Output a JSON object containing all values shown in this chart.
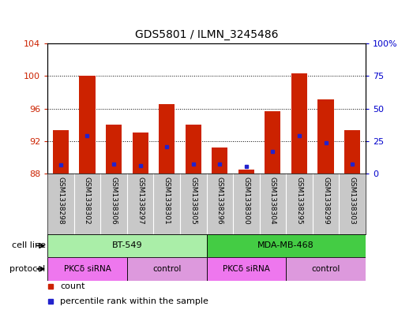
{
  "title": "GDS5801 / ILMN_3245486",
  "samples": [
    "GSM1338298",
    "GSM1338302",
    "GSM1338306",
    "GSM1338297",
    "GSM1338301",
    "GSM1338305",
    "GSM1338296",
    "GSM1338300",
    "GSM1338304",
    "GSM1338295",
    "GSM1338299",
    "GSM1338303"
  ],
  "bar_tops": [
    93.3,
    100.0,
    94.0,
    93.0,
    96.5,
    94.0,
    91.2,
    88.5,
    95.7,
    100.3,
    97.1,
    93.3
  ],
  "blue_positions": [
    89.1,
    92.7,
    89.2,
    89.0,
    91.3,
    89.2,
    89.2,
    88.9,
    90.7,
    92.7,
    91.8,
    89.2
  ],
  "bar_bottom": 88.0,
  "ymin": 88.0,
  "ymax": 104.0,
  "yticks_left": [
    88,
    92,
    96,
    100,
    104
  ],
  "yticks_right": [
    0,
    25,
    50,
    75,
    100
  ],
  "yright_min": 0,
  "yright_max": 100,
  "bar_color": "#cc2200",
  "blue_color": "#2222cc",
  "bar_width": 0.6,
  "cell_line_groups": [
    {
      "label": "BT-549",
      "start": 0,
      "end": 6,
      "color": "#aaeea8"
    },
    {
      "label": "MDA-MB-468",
      "start": 6,
      "end": 12,
      "color": "#44cc44"
    }
  ],
  "protocol_groups": [
    {
      "label": "PKCδ siRNA",
      "start": 0,
      "end": 3,
      "color": "#ee77ee"
    },
    {
      "label": "control",
      "start": 3,
      "end": 6,
      "color": "#dd99dd"
    },
    {
      "label": "PKCδ siRNA",
      "start": 6,
      "end": 9,
      "color": "#ee77ee"
    },
    {
      "label": "control",
      "start": 9,
      "end": 12,
      "color": "#dd99dd"
    }
  ],
  "legend_items": [
    "count",
    "percentile rank within the sample"
  ],
  "legend_colors": [
    "#cc2200",
    "#2222cc"
  ],
  "cell_line_label": "cell line",
  "protocol_label": "protocol",
  "tick_color_left": "#cc2200",
  "tick_color_right": "#0000cc",
  "sample_bg_color": "#c8c8c8",
  "plot_bg_color": "#ffffff"
}
